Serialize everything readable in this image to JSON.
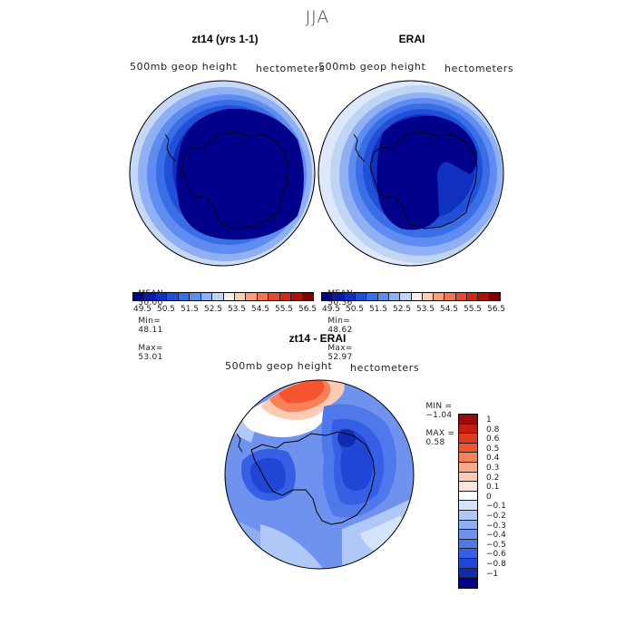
{
  "figure": {
    "title": "JJA"
  },
  "panels": [
    {
      "title": "zt14 (yrs 1-1)",
      "left_label": "500mb  geop  height",
      "right_label": "hectometers",
      "mean_label": "MEAN=",
      "mean": "50.00",
      "min_label": "Min=",
      "min": "48.11",
      "max_label": "Max=",
      "max": "53.01"
    },
    {
      "title": "ERAI",
      "left_label": "500mb  geop  height",
      "right_label": "hectometers",
      "mean_label": "MEAN=",
      "mean": "50.36",
      "min_label": "Min=",
      "min": "48.62",
      "max_label": "Max=",
      "max": "52.97"
    }
  ],
  "abs_colorbar": {
    "colors": [
      "#00008b",
      "#0a1aa6",
      "#1030c0",
      "#2050d8",
      "#3a6ee6",
      "#5e8cf0",
      "#8fb0f2",
      "#c0d4f4",
      "#f4ece6",
      "#fbcfb6",
      "#f6a07e",
      "#ee7654",
      "#e24a32",
      "#cc2a18",
      "#aa1508",
      "#800000"
    ],
    "labels": [
      "49.5",
      "50.5",
      "51.5",
      "52.5",
      "53.5",
      "54.5",
      "55.5",
      "56.5"
    ]
  },
  "diff_panel": {
    "title": "zt14 - ERAI",
    "left_label": "500mb  geop  height",
    "right_label": "hectometers",
    "min_label": "MIN =",
    "min": "−1.04",
    "max_label": "MAX =",
    "max": "0.58"
  },
  "diff_colorbar": {
    "colors": [
      "#9a0a0a",
      "#c41e10",
      "#e23a1c",
      "#f4552e",
      "#f8805a",
      "#f9a888",
      "#fbcbb4",
      "#fbe6da",
      "#ffffff",
      "#d4e4fa",
      "#b0c8f6",
      "#8eaef2",
      "#6e92ee",
      "#4f78ea",
      "#3560e6",
      "#1f46d4",
      "#0e2cb0",
      "#00008b"
    ],
    "labels": [
      "1",
      "0.8",
      "0.6",
      "0.5",
      "0.4",
      "0.3",
      "0.2",
      "0.1",
      "0",
      "−0.1",
      "−0.2",
      "−0.3",
      "−0.4",
      "−0.5",
      "−0.6",
      "−0.8",
      "−1"
    ]
  }
}
